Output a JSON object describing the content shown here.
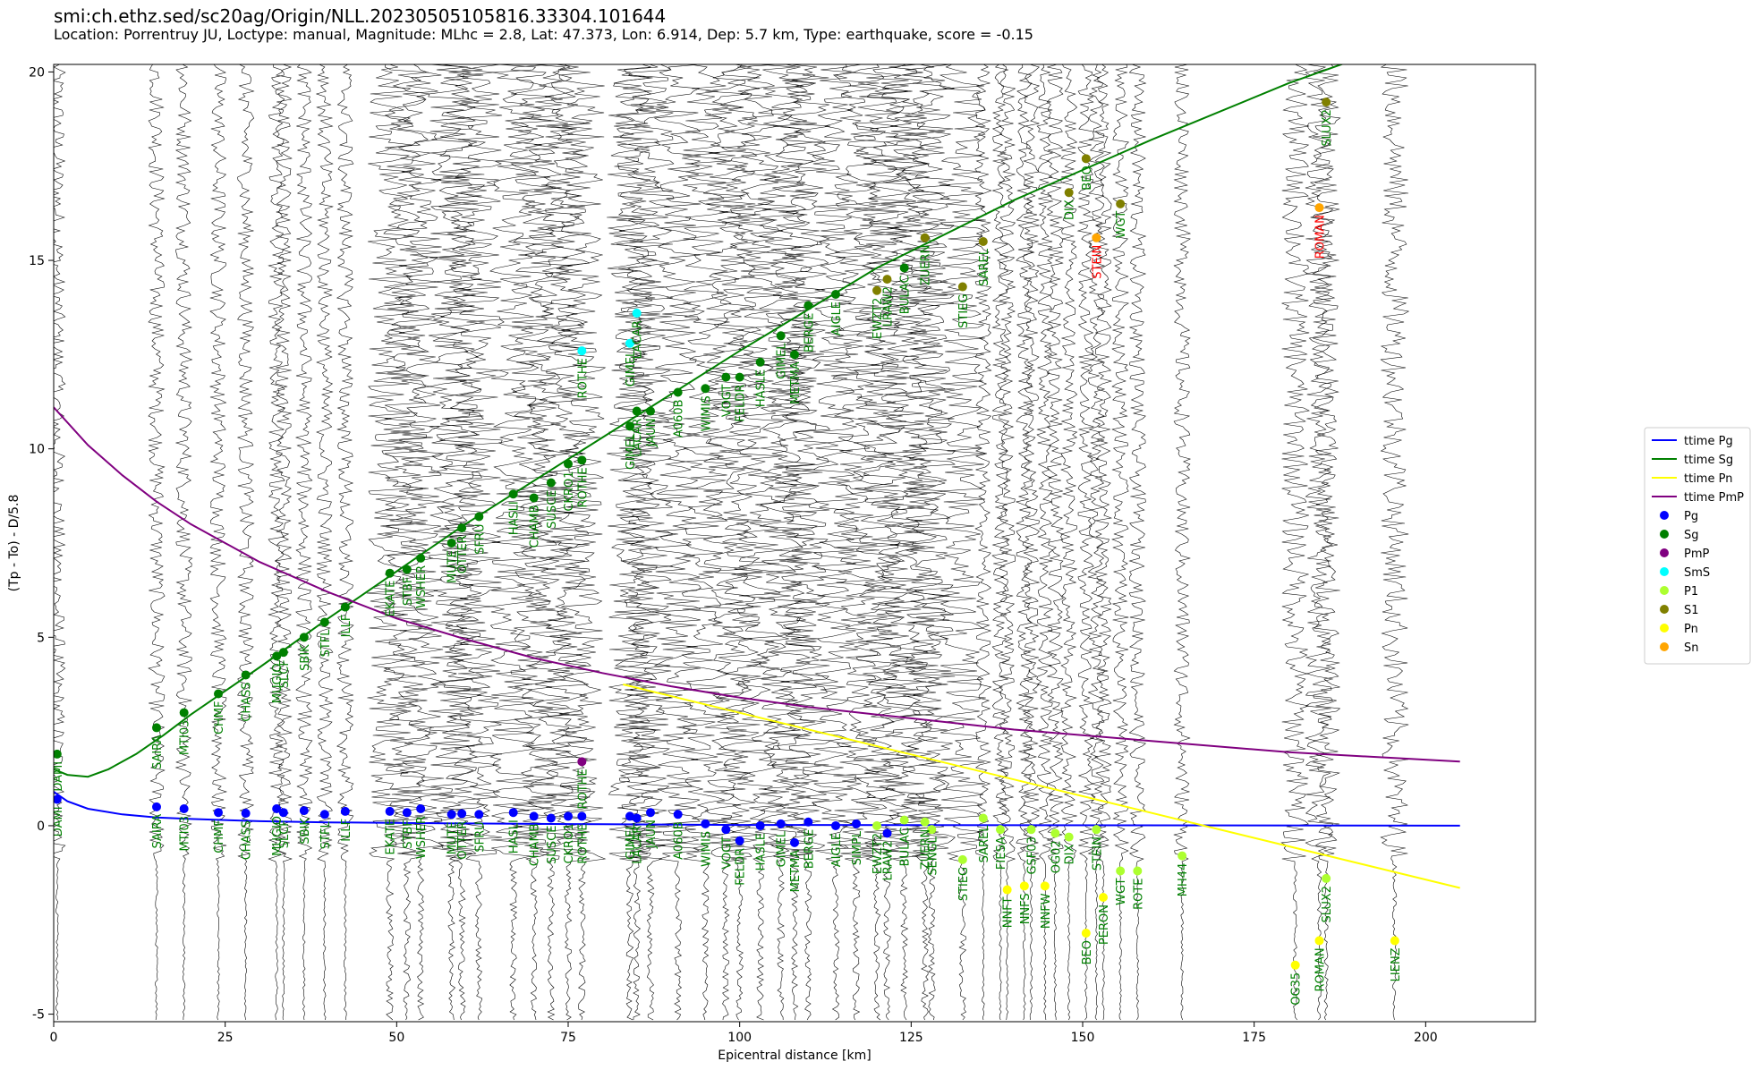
{
  "header": {
    "title": "smi:ch.ethz.sed/sc20ag/Origin/NLL.20230505105816.33304.101644",
    "subtitle": "Location: Porrentruy JU, Loctype: manual, Magnitude: MLhc = 2.8, Lat: 47.373, Lon: 6.914, Dep: 5.7 km, Type: earthquake, score = -0.15"
  },
  "chart_data": {
    "type": "scatter",
    "xlabel": "Epicentral distance [km]",
    "ylabel": "(Tp - To) - D/5.8",
    "xlim": [
      0,
      216
    ],
    "ylim": [
      -5.2,
      20.2
    ],
    "xticks": [
      0,
      25,
      50,
      75,
      100,
      125,
      150,
      175,
      200
    ],
    "yticks": [
      -5,
      0,
      5,
      10,
      15,
      20
    ],
    "legend_position": "right",
    "colors": {
      "ttime Pg": "#0000ff",
      "ttime Sg": "#008000",
      "ttime Pn": "#ffff00",
      "ttime PmP": "#800080",
      "Pg": "#0000ff",
      "Sg": "#008000",
      "PmP": "#800080",
      "SmS": "#00ffff",
      "P1": "#adff2f",
      "S1": "#808000",
      "Pn": "#ffff00",
      "Sn": "#ffa500"
    },
    "legend": [
      "ttime Pg",
      "ttime Sg",
      "ttime Pn",
      "ttime PmP",
      "Pg",
      "Sg",
      "PmP",
      "SmS",
      "P1",
      "S1",
      "Pn",
      "Sn"
    ],
    "curves": [
      {
        "name": "ttime Pg",
        "x": [
          0,
          2,
          5,
          10,
          15,
          20,
          30,
          40,
          60,
          80,
          100,
          205
        ],
        "y": [
          0.9,
          0.65,
          0.45,
          0.3,
          0.22,
          0.18,
          0.12,
          0.09,
          0.06,
          0.04,
          0.02,
          0.0
        ]
      },
      {
        "name": "ttime Sg",
        "x": [
          0,
          2,
          5,
          8,
          12,
          16,
          20,
          30,
          40,
          60,
          80,
          100,
          120,
          140,
          160,
          180,
          200
        ],
        "y": [
          1.5,
          1.35,
          1.3,
          1.5,
          1.9,
          2.4,
          2.95,
          4.2,
          5.5,
          8.0,
          10.3,
          12.6,
          14.8,
          16.6,
          18.2,
          19.7,
          21.0
        ]
      },
      {
        "name": "ttime Pn",
        "x": [
          83,
          205
        ],
        "y": [
          3.75,
          -1.65
        ]
      },
      {
        "name": "ttime PmP",
        "x": [
          0,
          5,
          10,
          15,
          20,
          30,
          40,
          50,
          60,
          70,
          80,
          90,
          100,
          110,
          120,
          140,
          160,
          180,
          205
        ],
        "y": [
          11.1,
          10.1,
          9.3,
          8.6,
          8.0,
          7.0,
          6.2,
          5.5,
          4.95,
          4.45,
          4.05,
          3.7,
          3.4,
          3.15,
          2.95,
          2.55,
          2.25,
          1.95,
          1.7
        ]
      }
    ],
    "stations": [
      {
        "x": 0.5,
        "name": "DAMI",
        "picks": [
          [
            "Pg",
            0.7
          ],
          [
            "Sg",
            1.9
          ]
        ]
      },
      {
        "x": 15.0,
        "name": "SAIRA",
        "picks": [
          [
            "Pg",
            0.5
          ],
          [
            "Sg",
            2.6
          ]
        ]
      },
      {
        "x": 19.0,
        "name": "MTI03",
        "picks": [
          [
            "Pg",
            0.45
          ],
          [
            "Sg",
            3.0
          ]
        ]
      },
      {
        "x": 24.0,
        "name": "CHMF",
        "picks": [
          [
            "Pg",
            0.35
          ],
          [
            "Sg",
            3.5
          ]
        ]
      },
      {
        "x": 28.0,
        "name": "CHASS",
        "picks": [
          [
            "Pg",
            0.33
          ],
          [
            "Sg",
            4.0
          ]
        ]
      },
      {
        "x": 32.5,
        "name": "MUGIO",
        "picks": [
          [
            "Pg",
            0.45
          ],
          [
            "Sg",
            4.5
          ]
        ]
      },
      {
        "x": 33.5,
        "name": "SLCF",
        "picks": [
          [
            "Pg",
            0.35
          ],
          [
            "Sg",
            4.6
          ]
        ]
      },
      {
        "x": 36.5,
        "name": "SBIK",
        "picks": [
          [
            "Pg",
            0.4
          ],
          [
            "Sg",
            5.0
          ]
        ]
      },
      {
        "x": 39.5,
        "name": "STFL",
        "picks": [
          [
            "Pg",
            0.3
          ],
          [
            "Sg",
            5.4
          ]
        ]
      },
      {
        "x": 42.5,
        "name": "ILLF",
        "picks": [
          [
            "Pg",
            0.38
          ],
          [
            "Sg",
            5.8
          ]
        ]
      },
      {
        "x": 49.0,
        "name": "EKATE",
        "picks": [
          [
            "Pg",
            0.38
          ],
          [
            "Sg",
            6.7
          ]
        ]
      },
      {
        "x": 51.5,
        "name": "STBF",
        "picks": [
          [
            "Pg",
            0.35
          ],
          [
            "Sg",
            6.8
          ]
        ]
      },
      {
        "x": 53.5,
        "name": "WSHER",
        "picks": [
          [
            "Pg",
            0.45
          ],
          [
            "Sg",
            7.1
          ]
        ]
      },
      {
        "x": 58.0,
        "name": "MUTE",
        "picks": [
          [
            "Pg",
            0.3
          ],
          [
            "Sg",
            7.5
          ]
        ]
      },
      {
        "x": 59.5,
        "name": "OTTER",
        "picks": [
          [
            "Pg",
            0.32
          ],
          [
            "Sg",
            7.9
          ]
        ]
      },
      {
        "x": 62.0,
        "name": "SFRU",
        "picks": [
          [
            "Pg",
            0.3
          ],
          [
            "Sg",
            8.2
          ]
        ]
      },
      {
        "x": 67.0,
        "name": "HASLI",
        "picks": [
          [
            "Pg",
            0.35
          ],
          [
            "Sg",
            8.8
          ]
        ]
      },
      {
        "x": 70.0,
        "name": "CHAMB",
        "picks": [
          [
            "Pg",
            0.25
          ],
          [
            "Sg",
            8.7
          ]
        ]
      },
      {
        "x": 72.5,
        "name": "SUSCE",
        "picks": [
          [
            "Pg",
            0.2
          ],
          [
            "Sg",
            9.1
          ]
        ]
      },
      {
        "x": 75.0,
        "name": "CKRO1",
        "picks": [
          [
            "Pg",
            0.25
          ],
          [
            "Sg",
            9.6
          ]
        ]
      },
      {
        "x": 77.0,
        "name": "ROTHE",
        "picks": [
          [
            "Pg",
            0.25
          ],
          [
            "Sg",
            9.7
          ],
          [
            "PmP",
            1.7
          ],
          [
            "SmS",
            12.6
          ]
        ]
      },
      {
        "x": 84.0,
        "name": "GIMEL",
        "picks": [
          [
            "Pg",
            0.25
          ],
          [
            "Sg",
            10.6
          ],
          [
            "SmS",
            12.8
          ]
        ]
      },
      {
        "x": 85.0,
        "name": "LACAR",
        "picks": [
          [
            "Pg",
            0.2
          ],
          [
            "Sg",
            11.0
          ],
          [
            "SmS",
            13.6
          ]
        ]
      },
      {
        "x": 87.0,
        "name": "JAUN",
        "picks": [
          [
            "Pg",
            0.35
          ],
          [
            "Sg",
            11.0
          ]
        ]
      },
      {
        "x": 91.0,
        "name": "A060B",
        "picks": [
          [
            "Pg",
            0.3
          ],
          [
            "Sg",
            11.5
          ]
        ]
      },
      {
        "x": 95.0,
        "name": "WIMIS",
        "picks": [
          [
            "Pg",
            0.05
          ],
          [
            "Sg",
            11.6
          ]
        ]
      },
      {
        "x": 98.0,
        "name": "VOGT",
        "picks": [
          [
            "Pg",
            -0.1
          ],
          [
            "Sg",
            11.9
          ]
        ]
      },
      {
        "x": 100.0,
        "name": "FELDR",
        "picks": [
          [
            "Pg",
            -0.4
          ],
          [
            "Sg",
            11.9
          ]
        ]
      },
      {
        "x": 103.0,
        "name": "HASLE",
        "picks": [
          [
            "Pg",
            0.0
          ],
          [
            "Sg",
            12.3
          ]
        ]
      },
      {
        "x": 106.0,
        "name": "GIMEL",
        "picks": [
          [
            "Pg",
            0.05
          ],
          [
            "Sg",
            13.0
          ]
        ]
      },
      {
        "x": 108.0,
        "name": "METMA",
        "picks": [
          [
            "Pg",
            -0.45
          ],
          [
            "Sg",
            12.5
          ]
        ]
      },
      {
        "x": 110.0,
        "name": "BERGE",
        "picks": [
          [
            "Pg",
            0.1
          ],
          [
            "Sg",
            13.8
          ]
        ]
      },
      {
        "x": 114.0,
        "name": "AIGLE",
        "picks": [
          [
            "Pg",
            0.0
          ],
          [
            "Sg",
            14.1
          ]
        ]
      },
      {
        "x": 117.0,
        "name": "SIMPL",
        "picks": [
          [
            "Pg",
            0.05
          ]
        ]
      },
      {
        "x": 120.0,
        "name": "EWZT2",
        "picks": [
          [
            "P1",
            0.0
          ],
          [
            "S1",
            14.2
          ]
        ]
      },
      {
        "x": 121.5,
        "name": "LRAW2",
        "picks": [
          [
            "Pg",
            -0.2
          ],
          [
            "S1",
            14.5
          ]
        ]
      },
      {
        "x": 124.0,
        "name": "BULAC",
        "picks": [
          [
            "P1",
            0.15
          ],
          [
            "Sg",
            14.8
          ]
        ]
      },
      {
        "x": 127.0,
        "name": "ZUERN",
        "picks": [
          [
            "P1",
            0.1
          ],
          [
            "S1",
            15.6
          ]
        ]
      },
      {
        "x": 128.0,
        "name": "SENGL",
        "picks": [
          [
            "P1",
            -0.1
          ]
        ]
      },
      {
        "x": 132.5,
        "name": "STIEG",
        "picks": [
          [
            "P1",
            -0.9
          ],
          [
            "S1",
            14.3
          ]
        ]
      },
      {
        "x": 135.5,
        "name": "SAREL",
        "picks": [
          [
            "P1",
            0.2
          ],
          [
            "S1",
            15.5
          ]
        ]
      },
      {
        "x": 138.0,
        "name": "FIESA",
        "picks": [
          [
            "P1",
            -0.1
          ]
        ]
      },
      {
        "x": 139.0,
        "name": "NNFT",
        "picks": [
          [
            "Pn",
            -1.7
          ]
        ]
      },
      {
        "x": 141.5,
        "name": "NNFS",
        "picks": [
          [
            "Pn",
            -1.6
          ]
        ]
      },
      {
        "x": 142.5,
        "name": "GSF03",
        "picks": [
          [
            "P1",
            -0.1
          ]
        ]
      },
      {
        "x": 144.5,
        "name": "NNFW",
        "picks": [
          [
            "Pn",
            -1.6
          ]
        ]
      },
      {
        "x": 146.0,
        "name": "OG02",
        "picks": [
          [
            "P1",
            -0.2
          ]
        ]
      },
      {
        "x": 148.0,
        "name": "DIX",
        "picks": [
          [
            "P1",
            -0.3
          ],
          [
            "S1",
            16.8
          ]
        ]
      },
      {
        "x": 150.5,
        "name": "BEO",
        "picks": [
          [
            "Pn",
            -2.85
          ],
          [
            "S1",
            17.7
          ]
        ]
      },
      {
        "x": 152.0,
        "name": "STEIN",
        "picks": [
          [
            "Sn",
            15.6
          ],
          [
            "P1",
            -0.1
          ]
        ]
      },
      {
        "x": 153.0,
        "name": "PERON",
        "picks": [
          [
            "Pn",
            -1.9
          ]
        ]
      },
      {
        "x": 155.5,
        "name": "WGT",
        "picks": [
          [
            "P1",
            -1.2
          ],
          [
            "S1",
            16.5
          ]
        ]
      },
      {
        "x": 158.0,
        "name": "ROTE",
        "picks": [
          [
            "P1",
            -1.2
          ]
        ]
      },
      {
        "x": 164.5,
        "name": "MH44",
        "picks": [
          [
            "P1",
            -0.8
          ]
        ]
      },
      {
        "x": 181.0,
        "name": "OG35",
        "picks": [
          [
            "Pn",
            -3.7
          ]
        ]
      },
      {
        "x": 184.5,
        "name": "ROMAN",
        "picks": [
          [
            "Pn",
            -3.05
          ],
          [
            "Sn",
            16.4
          ]
        ]
      },
      {
        "x": 185.5,
        "name": "SLUX2",
        "picks": [
          [
            "P1",
            -1.4
          ],
          [
            "S1",
            19.2
          ]
        ]
      },
      {
        "x": 195.5,
        "name": "LIENZ",
        "picks": [
          [
            "Pn",
            -3.05
          ]
        ]
      }
    ]
  }
}
